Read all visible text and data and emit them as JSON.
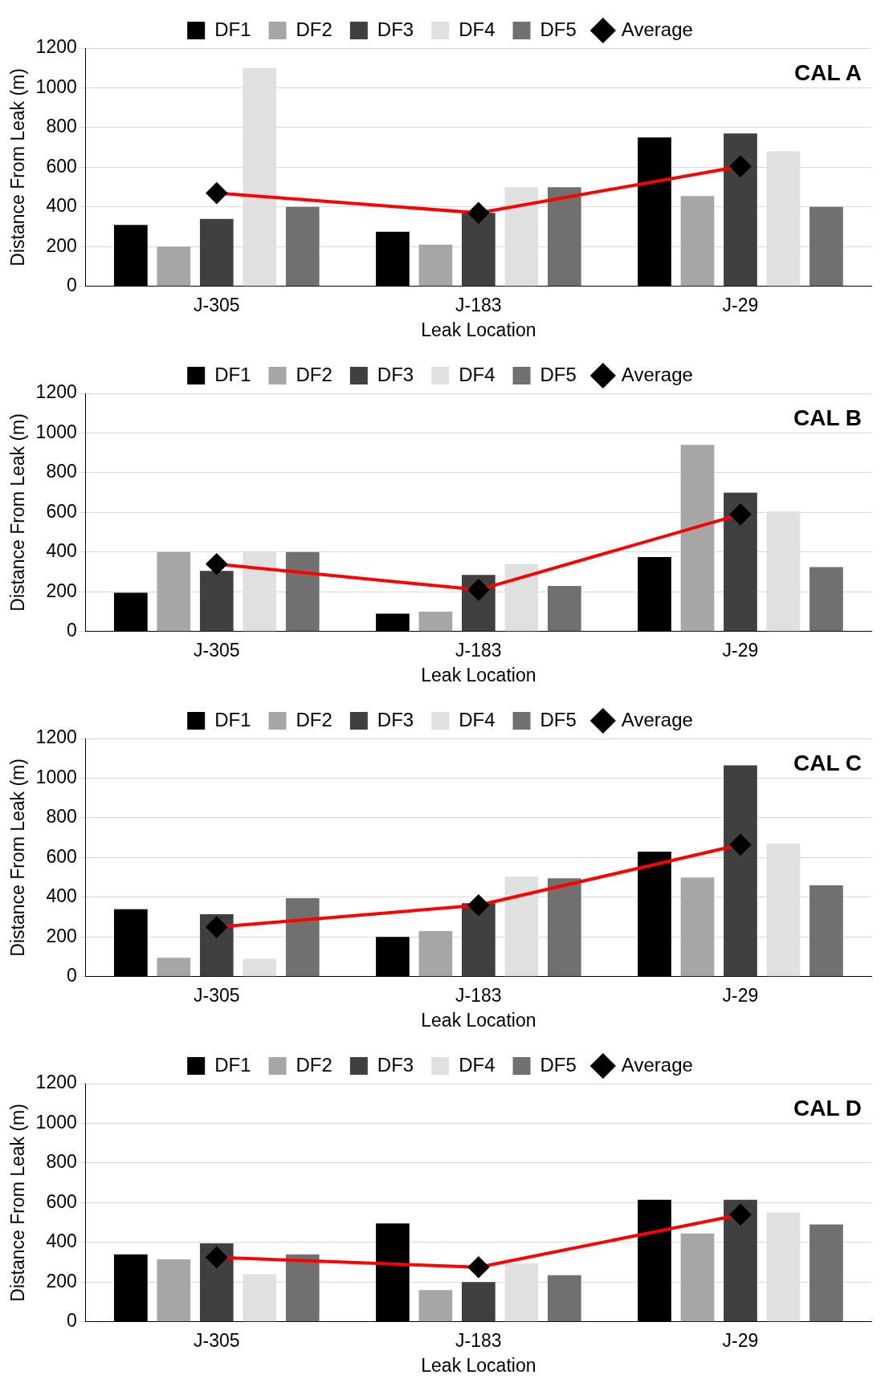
{
  "chart_data": [
    {
      "type": "bar",
      "categories": [
        "J-305",
        "J-183",
        "J-29"
      ],
      "xlabel": "Leak Location",
      "ylabel": "Distance From Leak (m)",
      "ylim": [
        0,
        1200
      ],
      "yticks": [
        0,
        200,
        400,
        600,
        800,
        1000,
        1200
      ],
      "grid": "y",
      "legend": "top",
      "marker": "diamond",
      "annotations": [
        "CAL A"
      ],
      "series": [
        {
          "name": "DF1",
          "color": "#000000",
          "values": [
            310,
            275,
            750
          ]
        },
        {
          "name": "DF2",
          "color": "#a6a6a6",
          "values": [
            200,
            210,
            455
          ]
        },
        {
          "name": "DF3",
          "color": "#404040",
          "values": [
            340,
            370,
            770
          ]
        },
        {
          "name": "DF4",
          "color": "#e0e0e0",
          "values": [
            1100,
            500,
            680
          ]
        },
        {
          "name": "DF5",
          "color": "#707070",
          "values": [
            400,
            500,
            400
          ]
        },
        {
          "name": "Average",
          "type": "line",
          "color": "#ff0000",
          "values": [
            470,
            370,
            605
          ]
        }
      ]
    },
    {
      "type": "bar",
      "categories": [
        "J-305",
        "J-183",
        "J-29"
      ],
      "xlabel": "Leak Location",
      "ylabel": "Distance From Leak (m)",
      "ylim": [
        0,
        1200
      ],
      "yticks": [
        0,
        200,
        400,
        600,
        800,
        1000,
        1200
      ],
      "grid": "y",
      "legend": "top",
      "marker": "diamond",
      "annotations": [
        "CAL B"
      ],
      "series": [
        {
          "name": "DF1",
          "color": "#000000",
          "values": [
            195,
            90,
            375
          ]
        },
        {
          "name": "DF2",
          "color": "#a6a6a6",
          "values": [
            400,
            100,
            940
          ]
        },
        {
          "name": "DF3",
          "color": "#404040",
          "values": [
            305,
            285,
            700
          ]
        },
        {
          "name": "DF4",
          "color": "#e0e0e0",
          "values": [
            400,
            340,
            605
          ]
        },
        {
          "name": "DF5",
          "color": "#707070",
          "values": [
            400,
            230,
            325
          ]
        },
        {
          "name": "Average",
          "type": "line",
          "color": "#ff0000",
          "values": [
            340,
            210,
            590
          ]
        }
      ]
    },
    {
      "type": "bar",
      "categories": [
        "J-305",
        "J-183",
        "J-29"
      ],
      "xlabel": "Leak Location",
      "ylabel": "Distance From Leak (m)",
      "ylim": [
        0,
        1200
      ],
      "yticks": [
        0,
        200,
        400,
        600,
        800,
        1000,
        1200
      ],
      "grid": "y",
      "legend": "top",
      "marker": "diamond",
      "annotations": [
        "CAL C"
      ],
      "series": [
        {
          "name": "DF1",
          "color": "#000000",
          "values": [
            340,
            200,
            630
          ]
        },
        {
          "name": "DF2",
          "color": "#a6a6a6",
          "values": [
            95,
            230,
            500
          ]
        },
        {
          "name": "DF3",
          "color": "#404040",
          "values": [
            315,
            370,
            1065
          ]
        },
        {
          "name": "DF4",
          "color": "#e0e0e0",
          "values": [
            90,
            505,
            670
          ]
        },
        {
          "name": "DF5",
          "color": "#707070",
          "values": [
            395,
            495,
            460
          ]
        },
        {
          "name": "Average",
          "type": "line",
          "color": "#ff0000",
          "values": [
            250,
            360,
            665
          ]
        }
      ]
    },
    {
      "type": "bar",
      "categories": [
        "J-305",
        "J-183",
        "J-29"
      ],
      "xlabel": "Leak Location",
      "ylabel": "Distance From Leak (m)",
      "ylim": [
        0,
        1200
      ],
      "yticks": [
        0,
        200,
        400,
        600,
        800,
        1000,
        1200
      ],
      "grid": "y",
      "legend": "top",
      "marker": "diamond",
      "annotations": [
        "CAL D"
      ],
      "series": [
        {
          "name": "DF1",
          "color": "#000000",
          "values": [
            340,
            495,
            615
          ]
        },
        {
          "name": "DF2",
          "color": "#a6a6a6",
          "values": [
            315,
            160,
            445
          ]
        },
        {
          "name": "DF3",
          "color": "#404040",
          "values": [
            395,
            200,
            615
          ]
        },
        {
          "name": "DF4",
          "color": "#e0e0e0",
          "values": [
            240,
            295,
            550
          ]
        },
        {
          "name": "DF5",
          "color": "#707070",
          "values": [
            340,
            235,
            490
          ]
        },
        {
          "name": "Average",
          "type": "line",
          "color": "#ff0000",
          "values": [
            325,
            275,
            540
          ]
        }
      ]
    }
  ]
}
